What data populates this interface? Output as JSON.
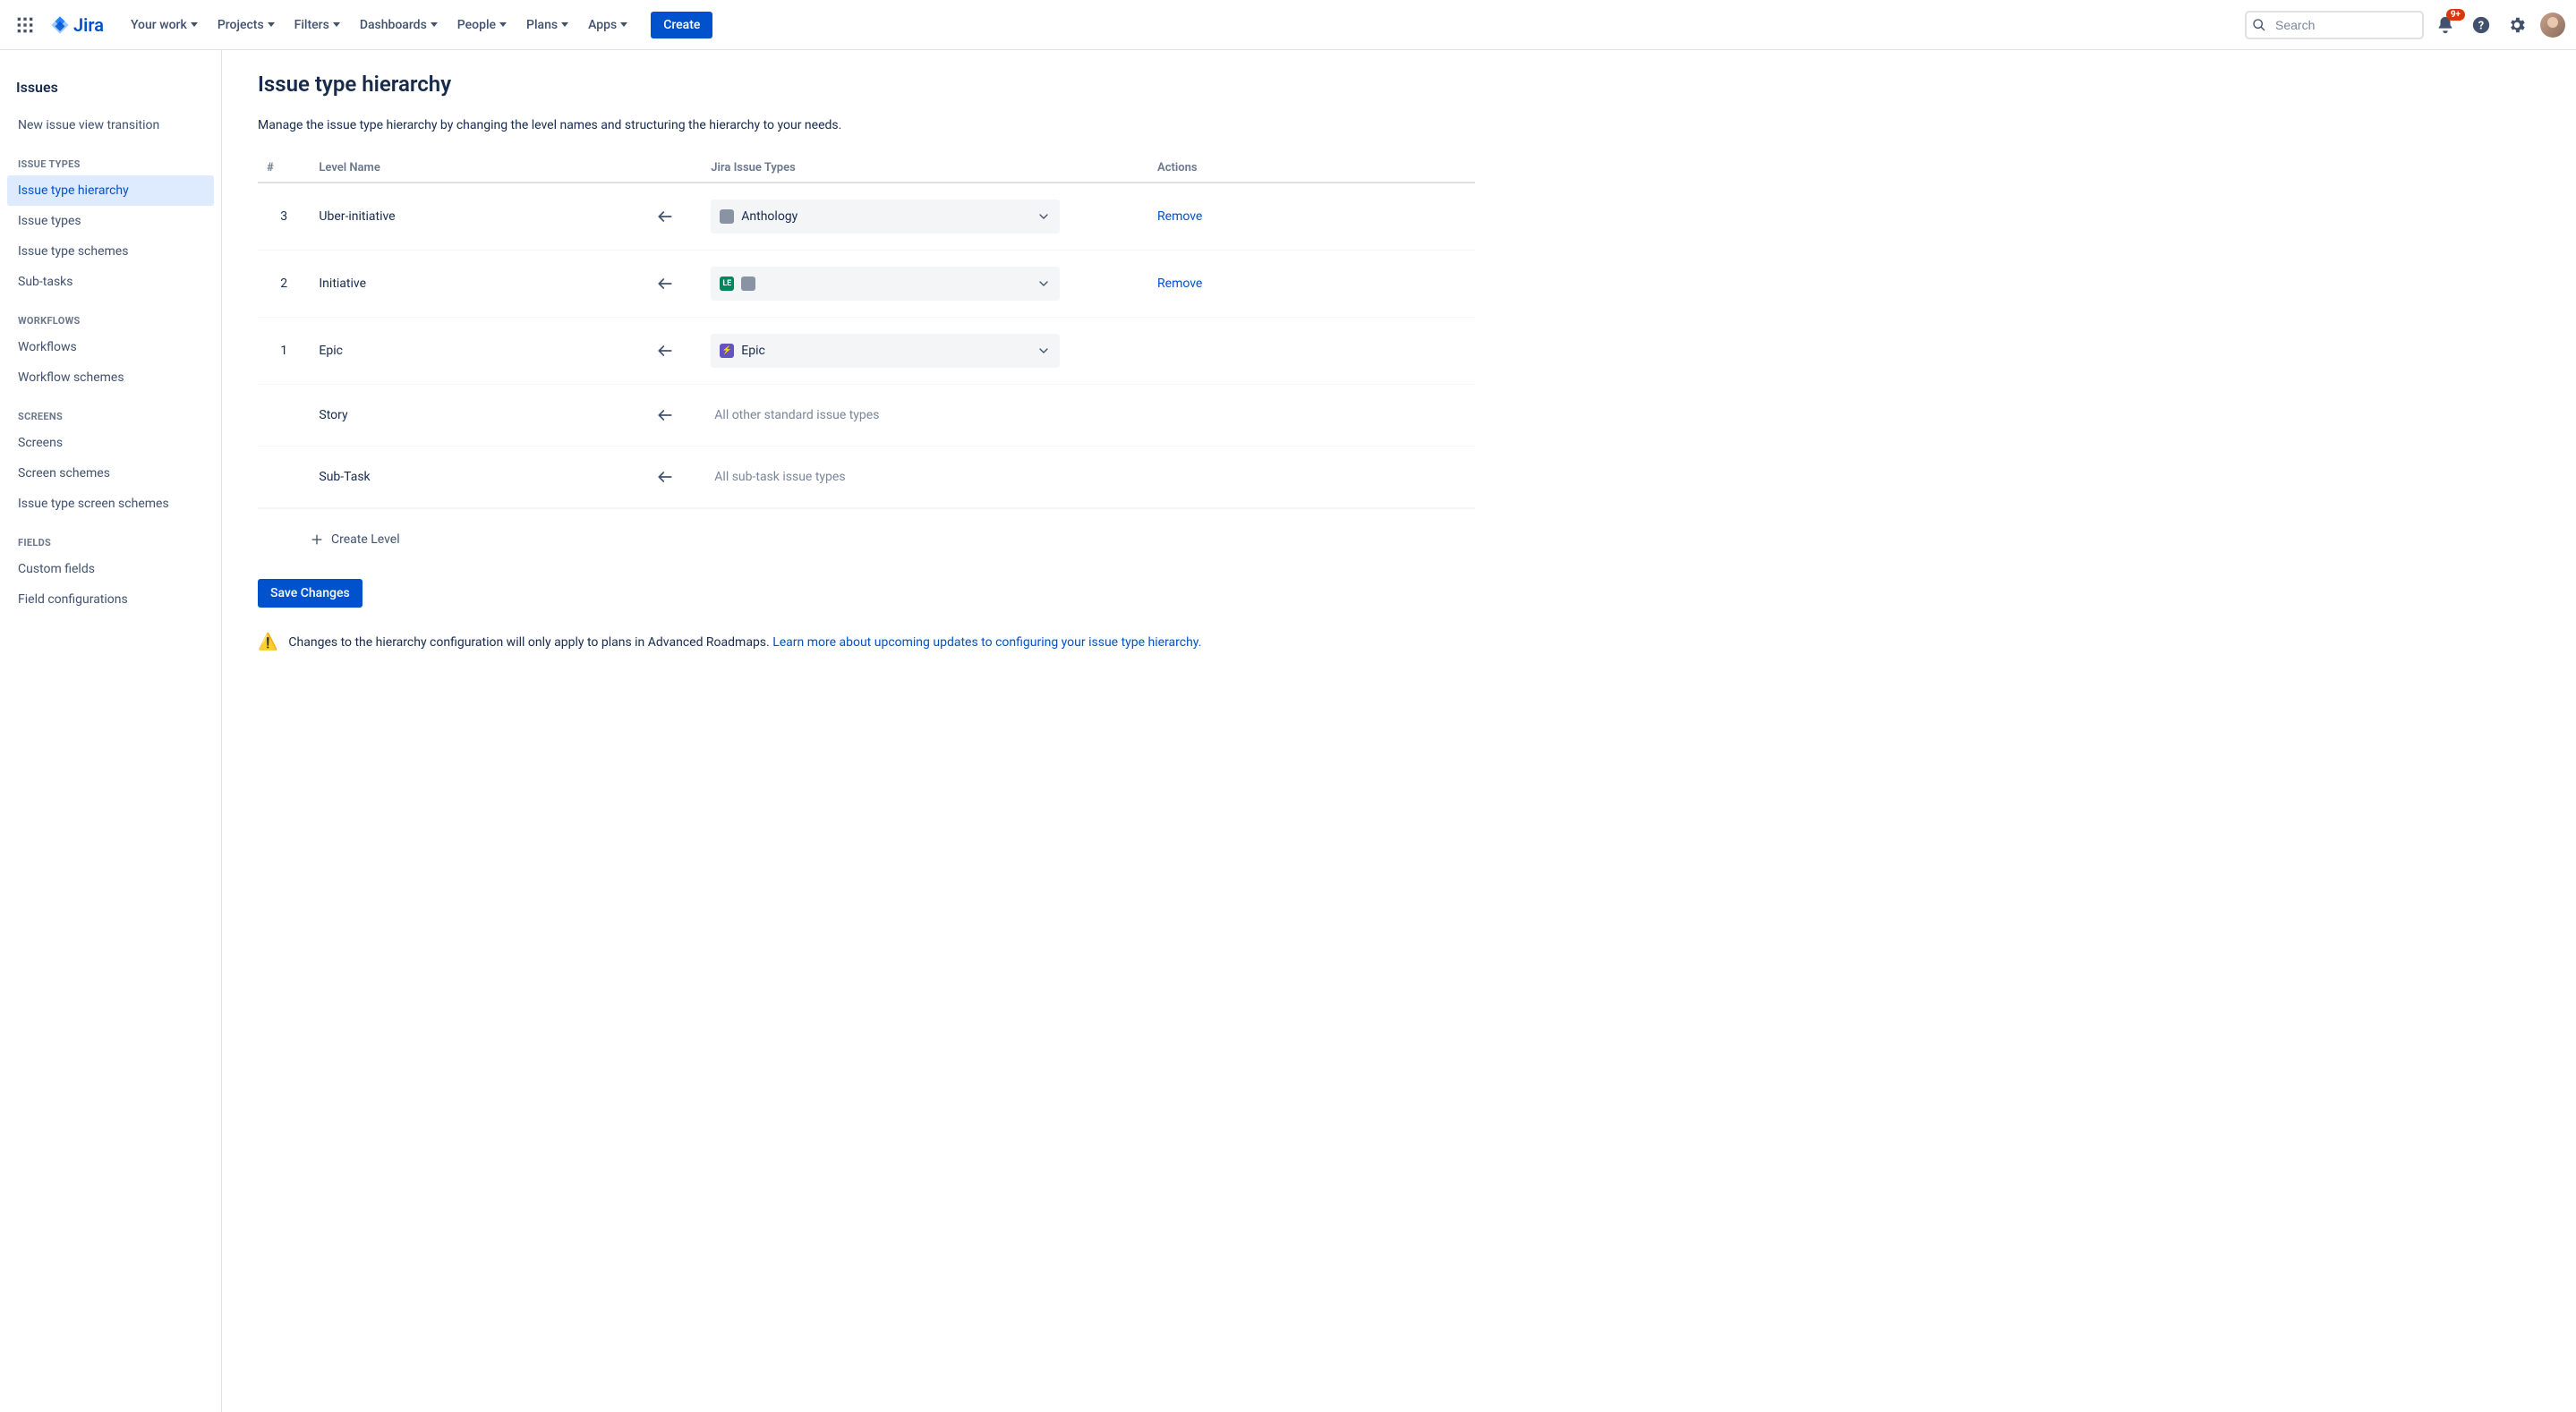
{
  "brand": {
    "product": "Jira"
  },
  "topnav": {
    "items": [
      {
        "label": "Your work"
      },
      {
        "label": "Projects"
      },
      {
        "label": "Filters"
      },
      {
        "label": "Dashboards"
      },
      {
        "label": "People"
      },
      {
        "label": "Plans"
      },
      {
        "label": "Apps"
      }
    ],
    "create_label": "Create",
    "search_placeholder": "Search",
    "notif_badge": "9+"
  },
  "sidebar": {
    "heading": "Issues",
    "top_links": [
      {
        "label": "New issue view transition"
      }
    ],
    "groups": [
      {
        "label": "Issue types",
        "items": [
          {
            "label": "Issue type hierarchy",
            "active": true
          },
          {
            "label": "Issue types"
          },
          {
            "label": "Issue type schemes"
          },
          {
            "label": "Sub-tasks"
          }
        ]
      },
      {
        "label": "Workflows",
        "items": [
          {
            "label": "Workflows"
          },
          {
            "label": "Workflow schemes"
          }
        ]
      },
      {
        "label": "Screens",
        "items": [
          {
            "label": "Screens"
          },
          {
            "label": "Screen schemes"
          },
          {
            "label": "Issue type screen schemes"
          }
        ]
      },
      {
        "label": "Fields",
        "items": [
          {
            "label": "Custom fields"
          },
          {
            "label": "Field configurations"
          }
        ]
      }
    ]
  },
  "page": {
    "title": "Issue type hierarchy",
    "description": "Manage the issue type hierarchy by changing the level names and structuring the hierarchy to your needs.",
    "columns": {
      "num": "#",
      "name": "Level Name",
      "types": "Jira Issue Types",
      "actions": "Actions"
    },
    "rows": [
      {
        "num": "3",
        "name": "Uber-initiative",
        "select": {
          "kind": "select",
          "chips": [
            {
              "color": "gray",
              "letters": ""
            }
          ],
          "label": "Anthology"
        },
        "action": "Remove"
      },
      {
        "num": "2",
        "name": "Initiative",
        "select": {
          "kind": "select",
          "chips": [
            {
              "color": "teal",
              "letters": "LE"
            },
            {
              "color": "gray",
              "letters": ""
            }
          ],
          "label": ""
        },
        "action": "Remove"
      },
      {
        "num": "1",
        "name": "Epic",
        "select": {
          "kind": "select",
          "chips": [
            {
              "color": "purple",
              "letters": "⚡"
            }
          ],
          "label": "Epic"
        },
        "action": ""
      },
      {
        "num": "",
        "name": "Story",
        "select": {
          "kind": "text",
          "text": "All other standard issue types"
        },
        "action": ""
      },
      {
        "num": "",
        "name": "Sub-Task",
        "select": {
          "kind": "text",
          "text": "All sub-task issue types"
        },
        "action": ""
      }
    ],
    "create_level_label": "Create Level",
    "save_label": "Save Changes",
    "notice_text": "Changes to the hierarchy configuration will only apply to plans in Advanced Roadmaps. ",
    "notice_link": "Learn more about upcoming updates to configuring your issue type hierarchy."
  },
  "colors": {
    "primary": "#0052cc",
    "text": "#172b4d",
    "subtle": "#6b778c",
    "border": "#dfe1e6",
    "selected_bg": "#deebff",
    "danger": "#de350b",
    "warn": "#ff991f"
  }
}
